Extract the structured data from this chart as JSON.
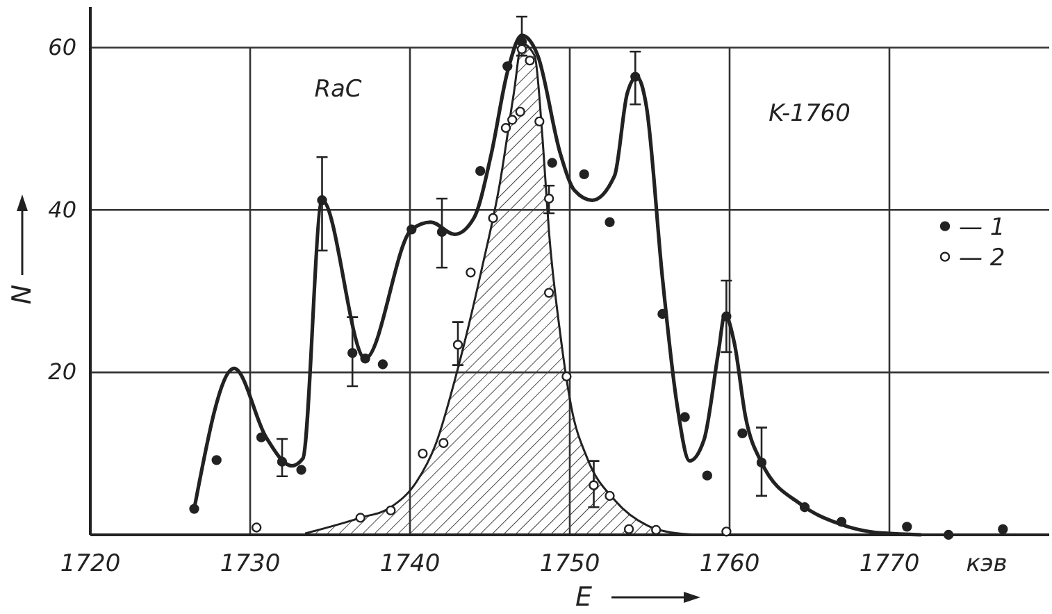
{
  "chart_data": {
    "type": "scatter",
    "xlabel": "E",
    "ylabel": "N",
    "xlim": [
      1720,
      1780
    ],
    "xticks": [
      1720,
      1730,
      1740,
      1750,
      1760,
      1770
    ],
    "ylim": [
      0,
      65
    ],
    "yticks": [
      20,
      40,
      60
    ],
    "grid": true,
    "legend": "right",
    "annotations": [
      "RaC",
      "K-1760",
      "кэв"
    ],
    "series": [
      {
        "type": "area",
        "color": "#222222",
        "x": [
          1733.5,
          1736.9,
          1738.8,
          1740.4,
          1741.6,
          1743,
          1744.5,
          1745.6,
          1746.5,
          1747,
          1747.8,
          1748.3,
          1748.7,
          1749.4,
          1750.1,
          1751.1,
          1752.8,
          1754.9,
          1756.3,
          1758
        ],
        "values": [
          0.2,
          2.1,
          3.4,
          6.5,
          11.1,
          20.5,
          32.8,
          43,
          54.4,
          60.5,
          59,
          48.7,
          37.3,
          24.8,
          15.7,
          9.4,
          4.3,
          1.1,
          0.3,
          0
        ]
      },
      {
        "type": "line",
        "color": "#222222",
        "x": [
          1726.5,
          1729,
          1731,
          1732.6,
          1733.3,
          1734.5,
          1737.2,
          1740.1,
          1741.3,
          1742.8,
          1744,
          1745.1,
          1746.1,
          1747,
          1748,
          1749.4,
          1750.3,
          1751.4,
          1752.8,
          1753.6,
          1754.2,
          1754.8,
          1755.8,
          1756.7,
          1757.5,
          1758.4,
          1759.3,
          1759.7,
          1760.3,
          1761,
          1762,
          1764.5,
          1766.8,
          1769.1,
          1772
        ],
        "values": [
          3.2,
          20.5,
          12,
          8.5,
          9.4,
          41.2,
          21.7,
          37.6,
          38.5,
          37,
          39,
          47,
          57,
          61.5,
          59,
          47,
          42.4,
          41.2,
          44.2,
          54.4,
          56.4,
          52.7,
          31.6,
          16.2,
          9.1,
          11.7,
          22.5,
          27.1,
          23.6,
          14.5,
          8.9,
          3.7,
          1.4,
          0.3,
          0
        ]
      },
      {
        "name": "— 1",
        "color": "#222222",
        "marker": "circle",
        "x": [
          1726.5,
          1727.9,
          1730.7,
          1732,
          1733.2,
          1734.5,
          1736.4,
          1737.2,
          1738.3,
          1740.1,
          1742,
          1744.4,
          1746.1,
          1747,
          1748.9,
          1750.9,
          1752.5,
          1754.1,
          1755.8,
          1757.2,
          1758.6,
          1759.8,
          1760.8,
          1762,
          1764.7,
          1767,
          1771.1,
          1773.7,
          1777.1
        ],
        "values": [
          3.2,
          9.2,
          12,
          9,
          8,
          41.2,
          22.4,
          21.7,
          21,
          37.6,
          37.3,
          44.8,
          57.7,
          60.7,
          45.8,
          44.4,
          38.5,
          56.4,
          27.2,
          14.5,
          7.3,
          26.9,
          12.5,
          8.9,
          3.4,
          1.6,
          1,
          0,
          0.7
        ],
        "errors": [
          null,
          null,
          null,
          [
            7.2,
            11.8
          ],
          null,
          [
            35,
            46.5
          ],
          [
            18.3,
            26.8
          ],
          null,
          null,
          null,
          [
            32.9,
            41.4
          ],
          null,
          null,
          [
            59,
            63.8
          ],
          null,
          null,
          null,
          [
            53,
            59.5
          ],
          null,
          null,
          null,
          [
            22.5,
            31.3
          ],
          null,
          [
            4.8,
            13.2
          ],
          null,
          null,
          null,
          null,
          null
        ]
      },
      {
        "name": "— 2",
        "color": "#222222",
        "marker": "circle",
        "x": [
          1730.4,
          1736.9,
          1738.8,
          1740.8,
          1742.1,
          1743,
          1743.8,
          1745.2,
          1746,
          1746.4,
          1746.9,
          1747,
          1747.5,
          1748.1,
          1748.7,
          1748.7,
          1749.8,
          1751.5,
          1752.5,
          1753.7,
          1755.4,
          1759.8
        ],
        "values": [
          0.9,
          2.1,
          3,
          10,
          11.3,
          23.4,
          32.3,
          39,
          50.1,
          51.1,
          52.1,
          59.8,
          58.4,
          50.9,
          41.4,
          29.8,
          19.5,
          6.1,
          4.8,
          0.7,
          0.6,
          0.4
        ],
        "errors": [
          null,
          null,
          null,
          null,
          null,
          [
            20.9,
            26.2
          ],
          null,
          null,
          null,
          null,
          null,
          null,
          null,
          null,
          [
            39.6,
            43
          ],
          null,
          null,
          [
            3.4,
            9.1
          ],
          null,
          null,
          null,
          null
        ]
      }
    ]
  }
}
